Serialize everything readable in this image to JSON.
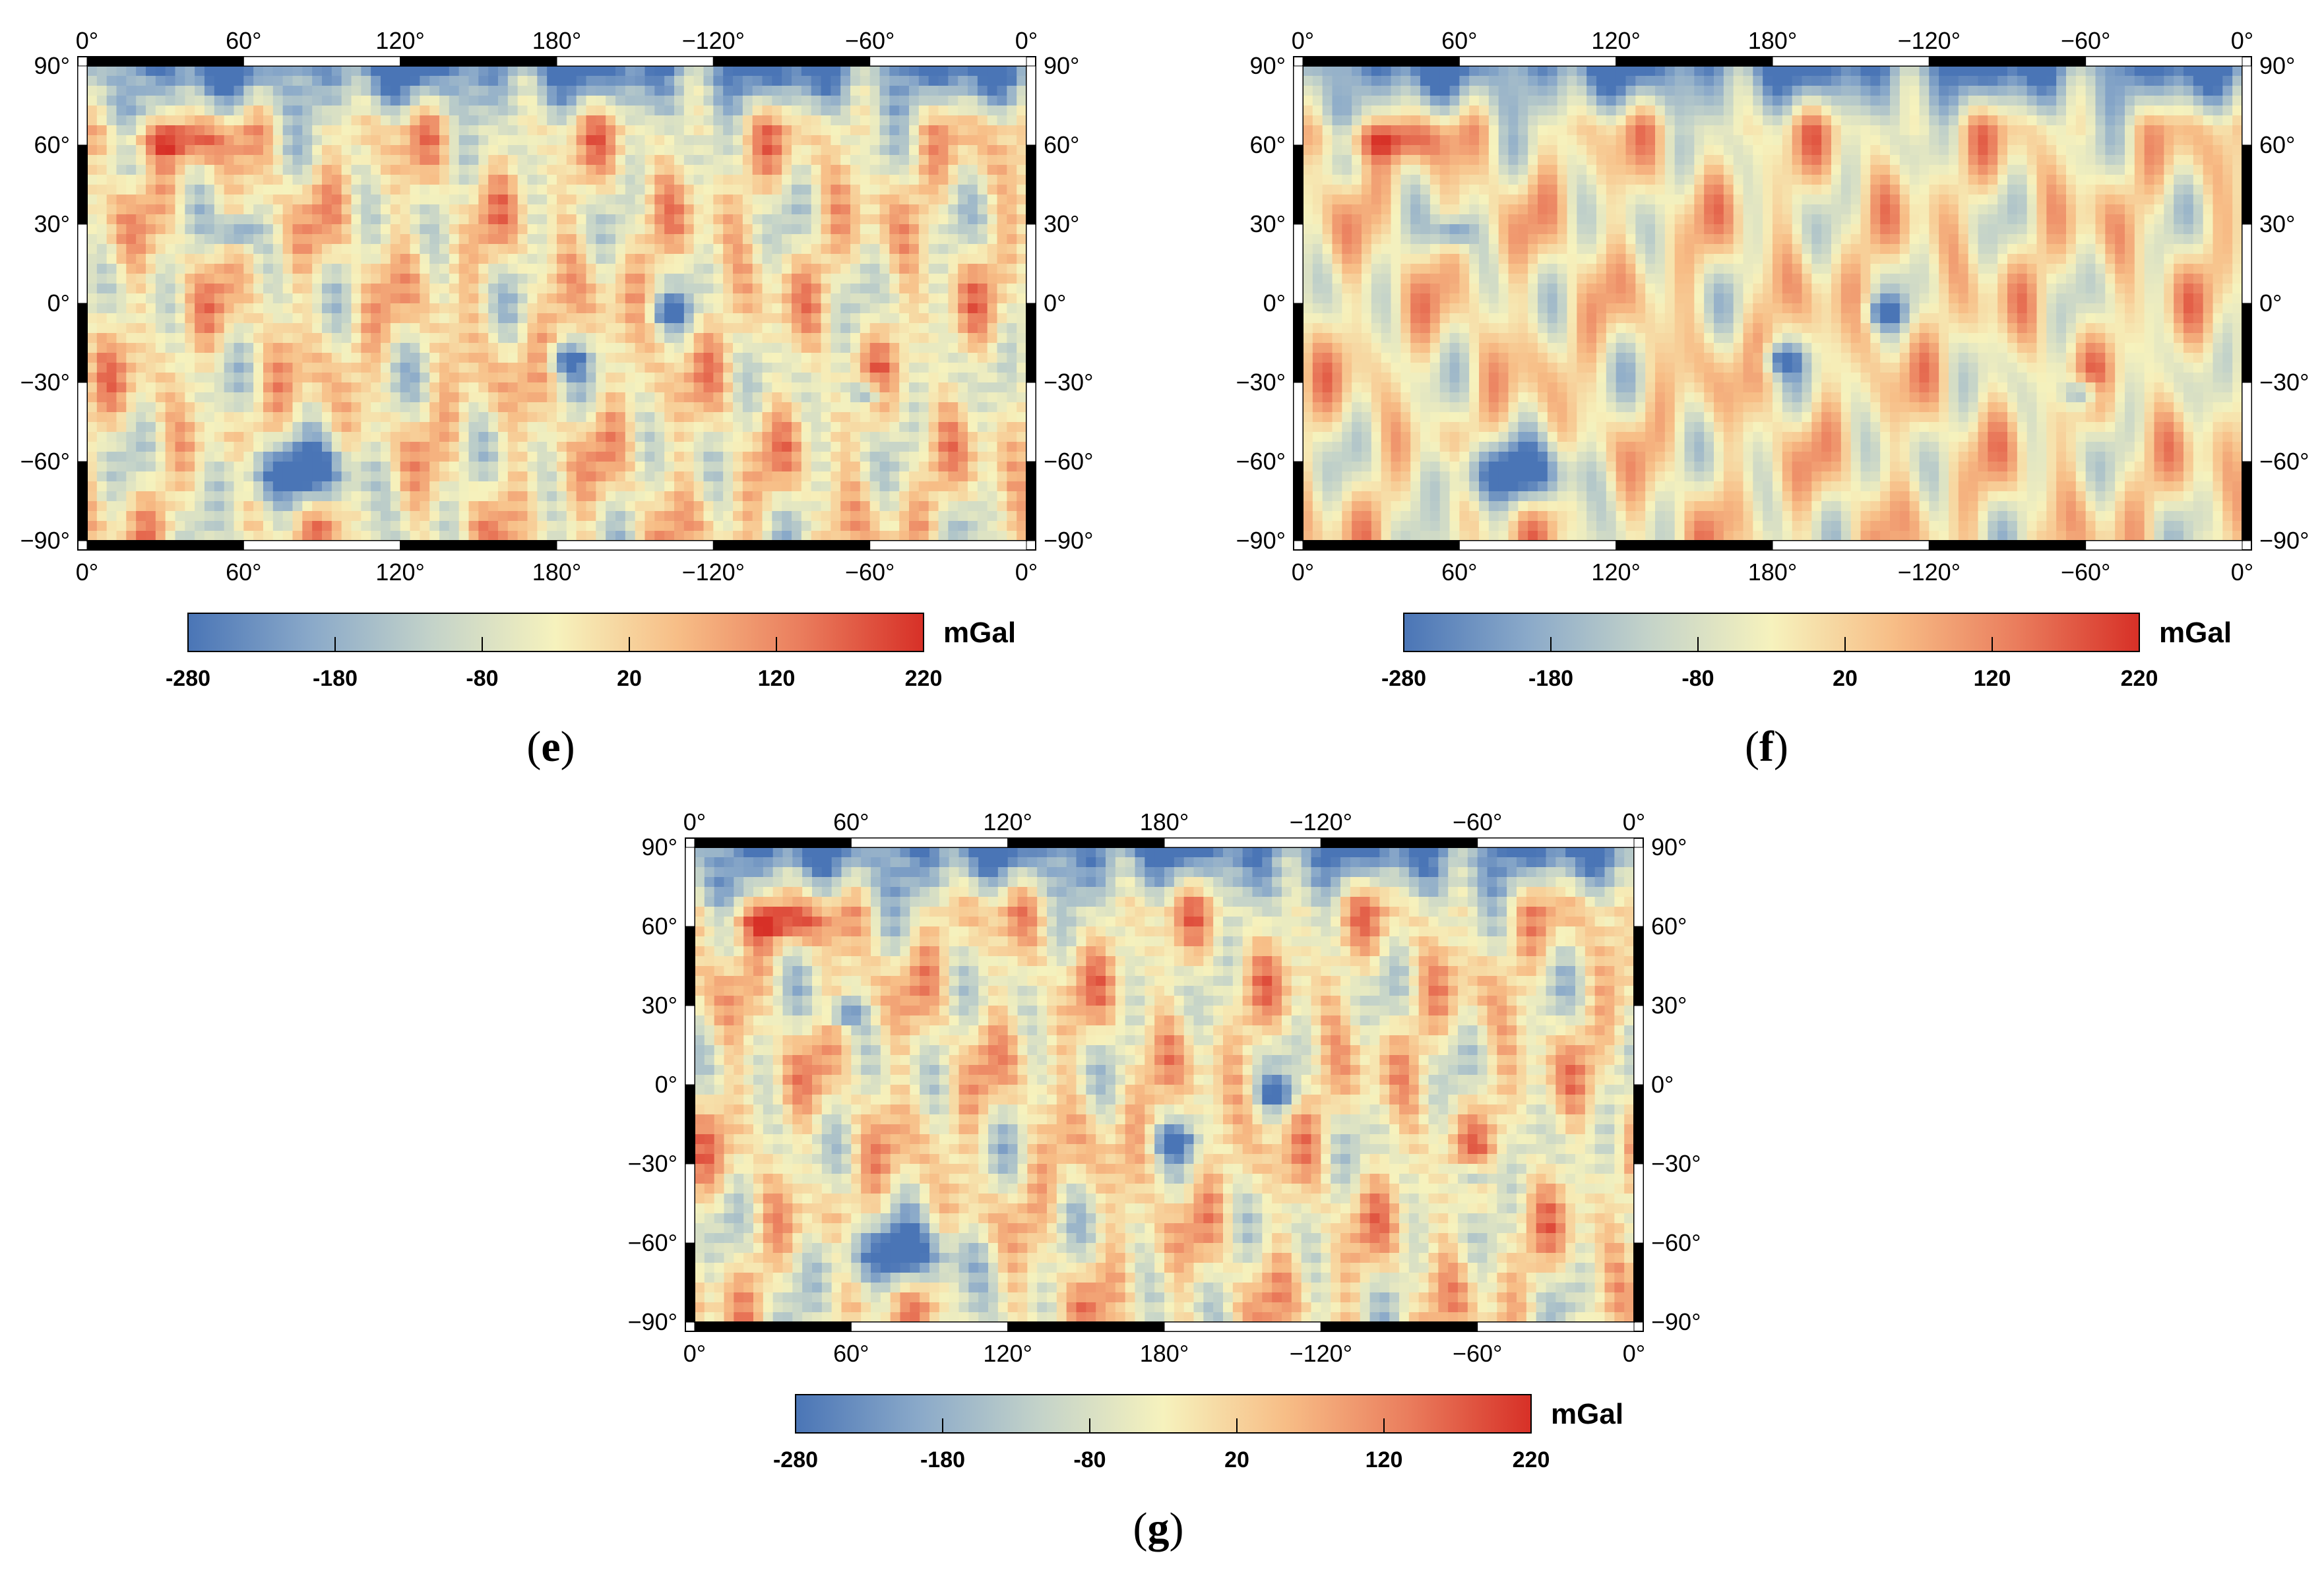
{
  "axes": {
    "x_ticks": [
      "0°",
      "60°",
      "120°",
      "180°",
      "−120°",
      "−60°",
      "0°"
    ],
    "y_ticks": [
      "90°",
      "60°",
      "30°",
      "0°",
      "−30°",
      "−60°",
      "−90°"
    ]
  },
  "colorbar": {
    "ticks": [
      "-280",
      "-180",
      "-80",
      "20",
      "120",
      "220"
    ],
    "range": [
      -280,
      220
    ],
    "unit": "mGal",
    "colors": [
      "#4a75b6",
      "#8aa9c9",
      "#c4d3c9",
      "#f6f2bd",
      "#f7bd86",
      "#ea7d5d",
      "#d73027"
    ]
  },
  "panels": [
    {
      "label": "e",
      "caption_open": "(",
      "caption_close": ")"
    },
    {
      "label": "f",
      "caption_open": "(",
      "caption_close": ")"
    },
    {
      "label": "g",
      "caption_open": "(",
      "caption_close": ")"
    }
  ]
}
